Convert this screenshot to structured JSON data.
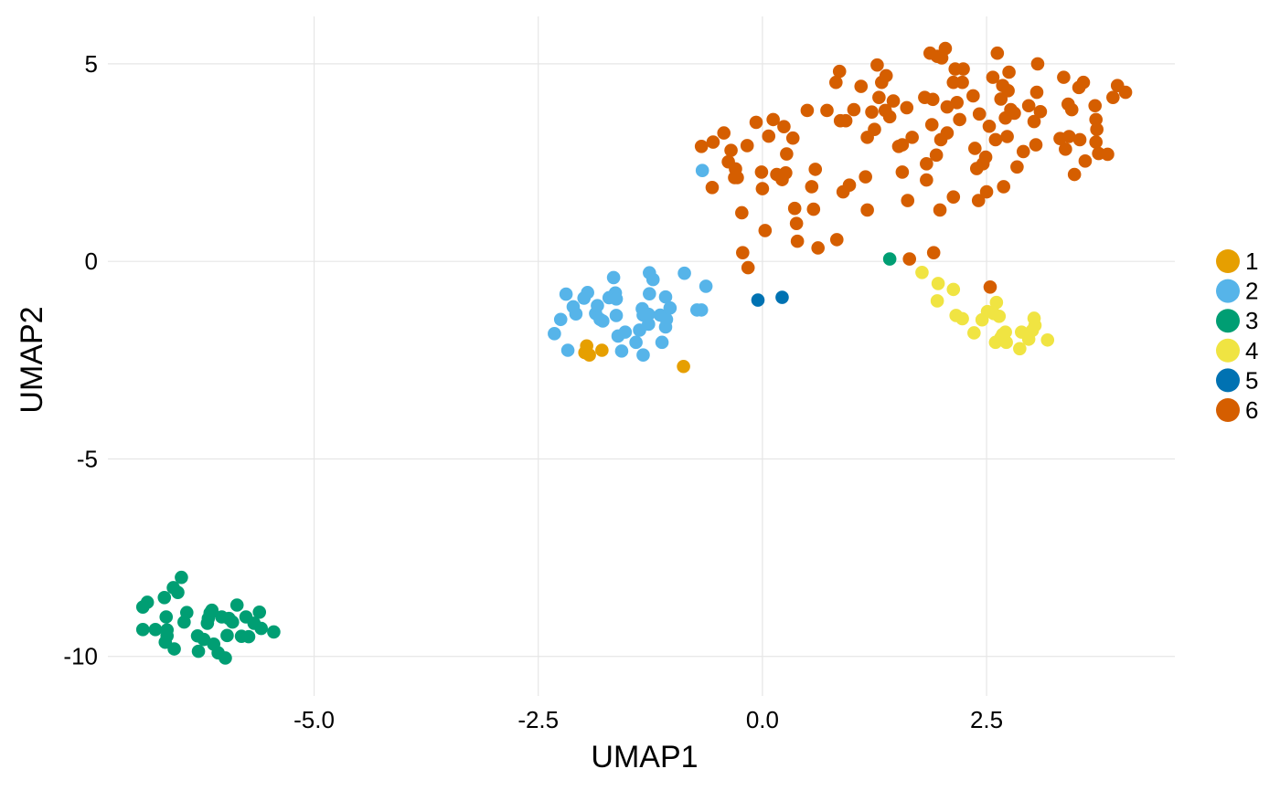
{
  "chart_data": {
    "type": "scatter",
    "xlabel": "UMAP1",
    "ylabel": "UMAP2",
    "xlim": [
      -7.3,
      4.6
    ],
    "ylim": [
      -11.0,
      6.2
    ],
    "xticks": [
      -5.0,
      -2.5,
      0.0,
      2.5
    ],
    "xtick_labels": [
      "-5.0",
      "-2.5",
      "0.0",
      "2.5"
    ],
    "yticks": [
      -10,
      -5,
      0,
      5
    ],
    "ytick_labels": [
      "-10",
      "-5",
      "0",
      "5"
    ],
    "grid": true,
    "legend_position": "right",
    "series": [
      {
        "name": "1",
        "color": "#E69F00",
        "points": [
          [
            -1.96,
            -2.14
          ],
          [
            -1.98,
            -2.31
          ],
          [
            -1.93,
            -2.37
          ],
          [
            -1.79,
            -2.25
          ],
          [
            -0.88,
            -2.66
          ]
        ]
      },
      {
        "name": "2",
        "color": "#56B4E9",
        "points": [
          [
            -0.67,
            2.3
          ],
          [
            -2.32,
            -1.83
          ],
          [
            -2.25,
            -1.47
          ],
          [
            -2.19,
            -0.83
          ],
          [
            -2.17,
            -2.25
          ],
          [
            -2.11,
            -1.15
          ],
          [
            -2.08,
            -1.33
          ],
          [
            -1.99,
            -0.93
          ],
          [
            -1.95,
            -0.79
          ],
          [
            -1.86,
            -1.32
          ],
          [
            -1.84,
            -1.12
          ],
          [
            -1.81,
            -1.47
          ],
          [
            -1.78,
            -1.51
          ],
          [
            -1.71,
            -0.92
          ],
          [
            -1.66,
            -0.41
          ],
          [
            -1.64,
            -0.8
          ],
          [
            -1.63,
            -0.95
          ],
          [
            -1.63,
            -1.37
          ],
          [
            -1.61,
            -1.89
          ],
          [
            -1.57,
            -2.27
          ],
          [
            -1.53,
            -1.79
          ],
          [
            -1.41,
            -2.05
          ],
          [
            -1.37,
            -1.74
          ],
          [
            -1.33,
            -2.37
          ],
          [
            -1.34,
            -1.2
          ],
          [
            -1.33,
            -1.36
          ],
          [
            -1.27,
            -1.59
          ],
          [
            -1.27,
            -1.34
          ],
          [
            -1.26,
            -0.82
          ],
          [
            -1.26,
            -0.29
          ],
          [
            -1.22,
            -0.46
          ],
          [
            -1.14,
            -1.36
          ],
          [
            -1.12,
            -2.05
          ],
          [
            -1.08,
            -0.9
          ],
          [
            -1.08,
            -1.66
          ],
          [
            -1.07,
            -1.47
          ],
          [
            -1.03,
            -1.18
          ],
          [
            -0.87,
            -0.3
          ],
          [
            -0.73,
            -1.23
          ],
          [
            -0.68,
            -1.23
          ],
          [
            -0.63,
            -0.63
          ]
        ]
      },
      {
        "name": "3",
        "color": "#009E73",
        "points": [
          [
            1.42,
            0.06
          ],
          [
            -6.48,
            -8.0
          ],
          [
            -6.52,
            -8.38
          ],
          [
            -6.57,
            -8.26
          ],
          [
            -6.67,
            -8.51
          ],
          [
            -6.86,
            -8.63
          ],
          [
            -6.91,
            -8.75
          ],
          [
            -6.91,
            -9.32
          ],
          [
            -6.77,
            -9.32
          ],
          [
            -6.65,
            -9.0
          ],
          [
            -6.64,
            -9.33
          ],
          [
            -6.64,
            -9.48
          ],
          [
            -6.66,
            -9.64
          ],
          [
            -6.56,
            -9.81
          ],
          [
            -6.45,
            -9.13
          ],
          [
            -6.42,
            -8.89
          ],
          [
            -6.3,
            -9.48
          ],
          [
            -6.29,
            -9.87
          ],
          [
            -6.23,
            -9.57
          ],
          [
            -6.19,
            -9.16
          ],
          [
            -6.18,
            -9.04
          ],
          [
            -6.16,
            -8.9
          ],
          [
            -6.14,
            -8.83
          ],
          [
            -6.12,
            -9.69
          ],
          [
            -6.07,
            -9.91
          ],
          [
            -6.03,
            -9.0
          ],
          [
            -5.99,
            -10.04
          ],
          [
            -5.97,
            -9.47
          ],
          [
            -5.95,
            -9.04
          ],
          [
            -5.91,
            -9.13
          ],
          [
            -5.86,
            -8.7
          ],
          [
            -5.81,
            -9.49
          ],
          [
            -5.76,
            -9.0
          ],
          [
            -5.73,
            -9.5
          ],
          [
            -5.67,
            -9.16
          ],
          [
            -5.61,
            -8.88
          ],
          [
            -5.59,
            -9.29
          ],
          [
            -5.45,
            -9.38
          ]
        ]
      },
      {
        "name": "4",
        "color": "#F0E442",
        "points": [
          [
            1.78,
            -0.28
          ],
          [
            1.96,
            -0.56
          ],
          [
            1.95,
            -1.0
          ],
          [
            2.13,
            -0.71
          ],
          [
            2.16,
            -1.37
          ],
          [
            2.23,
            -1.45
          ],
          [
            2.36,
            -1.81
          ],
          [
            2.45,
            -1.48
          ],
          [
            2.51,
            -1.27
          ],
          [
            2.58,
            -1.32
          ],
          [
            2.61,
            -1.04
          ],
          [
            2.6,
            -2.05
          ],
          [
            2.64,
            -1.39
          ],
          [
            2.66,
            -1.93
          ],
          [
            2.68,
            -1.85
          ],
          [
            2.72,
            -2.05
          ],
          [
            2.71,
            -1.79
          ],
          [
            2.87,
            -2.21
          ],
          [
            2.89,
            -1.79
          ],
          [
            2.97,
            -1.97
          ],
          [
            3.01,
            -1.75
          ],
          [
            3.03,
            -1.44
          ],
          [
            3.04,
            -1.62
          ],
          [
            3.18,
            -1.99
          ]
        ]
      },
      {
        "name": "5",
        "color": "#0072B2",
        "points": [
          [
            -0.05,
            -0.98
          ],
          [
            0.22,
            -0.91
          ]
        ]
      },
      {
        "name": "6",
        "color": "#D55E00",
        "points": [
          [
            1.64,
            0.06
          ],
          [
            1.91,
            0.22
          ],
          [
            2.54,
            -0.65
          ],
          [
            -0.68,
            2.91
          ],
          [
            -0.55,
            3.02
          ],
          [
            -0.43,
            3.25
          ],
          [
            -0.38,
            2.52
          ],
          [
            -0.35,
            2.81
          ],
          [
            -0.31,
            2.12
          ],
          [
            -0.3,
            2.34
          ],
          [
            -0.28,
            2.12
          ],
          [
            -0.56,
            1.87
          ],
          [
            -0.23,
            1.23
          ],
          [
            -0.17,
            2.93
          ],
          [
            -0.07,
            3.52
          ],
          [
            -0.01,
            2.26
          ],
          [
            0.0,
            1.84
          ],
          [
            0.03,
            0.78
          ],
          [
            0.07,
            3.17
          ],
          [
            0.12,
            3.59
          ],
          [
            0.16,
            2.2
          ],
          [
            0.22,
            2.07
          ],
          [
            0.24,
            3.41
          ],
          [
            0.27,
            2.72
          ],
          [
            0.26,
            2.24
          ],
          [
            0.34,
            3.12
          ],
          [
            0.36,
            1.34
          ],
          [
            0.38,
            0.96
          ],
          [
            0.39,
            0.51
          ],
          [
            -0.22,
            0.22
          ],
          [
            -0.16,
            -0.16
          ],
          [
            0.5,
            3.82
          ],
          [
            0.55,
            1.89
          ],
          [
            0.57,
            1.32
          ],
          [
            0.59,
            2.33
          ],
          [
            0.62,
            0.34
          ],
          [
            0.72,
            3.82
          ],
          [
            0.82,
            4.53
          ],
          [
            0.83,
            0.55
          ],
          [
            0.86,
            4.81
          ],
          [
            0.87,
            3.56
          ],
          [
            0.9,
            1.76
          ],
          [
            0.93,
            3.56
          ],
          [
            0.97,
            1.93
          ],
          [
            1.02,
            3.84
          ],
          [
            1.1,
            4.43
          ],
          [
            1.15,
            2.14
          ],
          [
            1.17,
            1.3
          ],
          [
            1.17,
            3.14
          ],
          [
            1.22,
            3.78
          ],
          [
            1.25,
            3.34
          ],
          [
            1.28,
            4.97
          ],
          [
            1.3,
            4.15
          ],
          [
            1.33,
            4.53
          ],
          [
            1.37,
            3.82
          ],
          [
            1.38,
            4.7
          ],
          [
            1.42,
            3.66
          ],
          [
            1.46,
            4.06
          ],
          [
            1.52,
            2.91
          ],
          [
            1.56,
            2.95
          ],
          [
            1.56,
            2.26
          ],
          [
            1.61,
            3.89
          ],
          [
            1.62,
            1.54
          ],
          [
            1.67,
            3.14
          ],
          [
            1.81,
            4.15
          ],
          [
            1.83,
            2.06
          ],
          [
            1.83,
            2.47
          ],
          [
            1.87,
            5.27
          ],
          [
            1.89,
            3.46
          ],
          [
            1.9,
            4.1
          ],
          [
            1.94,
            2.69
          ],
          [
            1.95,
            5.19
          ],
          [
            1.98,
            1.3
          ],
          [
            1.99,
            3.08
          ],
          [
            2.0,
            5.15
          ],
          [
            2.04,
            5.39
          ],
          [
            2.06,
            3.25
          ],
          [
            2.06,
            3.91
          ],
          [
            2.13,
            4.53
          ],
          [
            2.13,
            1.63
          ],
          [
            2.15,
            4.87
          ],
          [
            2.17,
            4.02
          ],
          [
            2.2,
            3.59
          ],
          [
            2.23,
            4.53
          ],
          [
            2.24,
            4.87
          ],
          [
            2.35,
            4.19
          ],
          [
            2.37,
            2.86
          ],
          [
            2.39,
            2.35
          ],
          [
            2.41,
            1.54
          ],
          [
            2.42,
            3.73
          ],
          [
            2.46,
            2.47
          ],
          [
            2.49,
            2.64
          ],
          [
            2.5,
            1.76
          ],
          [
            2.53,
            3.42
          ],
          [
            2.57,
            4.66
          ],
          [
            2.6,
            3.08
          ],
          [
            2.62,
            5.27
          ],
          [
            2.66,
            4.11
          ],
          [
            2.68,
            4.45
          ],
          [
            2.69,
            1.89
          ],
          [
            2.71,
            3.63
          ],
          [
            2.74,
            4.32
          ],
          [
            2.73,
            3.16
          ],
          [
            2.75,
            4.79
          ],
          [
            2.77,
            3.84
          ],
          [
            2.81,
            3.75
          ],
          [
            2.84,
            2.39
          ],
          [
            2.91,
            2.78
          ],
          [
            2.97,
            3.94
          ],
          [
            3.03,
            3.54
          ],
          [
            3.05,
            2.95
          ],
          [
            3.06,
            4.28
          ],
          [
            3.07,
            5.0
          ],
          [
            3.1,
            3.79
          ],
          [
            3.32,
            3.11
          ],
          [
            3.38,
            2.84
          ],
          [
            3.36,
            4.66
          ],
          [
            3.41,
            3.98
          ],
          [
            3.42,
            3.16
          ],
          [
            3.45,
            3.84
          ],
          [
            3.48,
            2.2
          ],
          [
            3.53,
            4.4
          ],
          [
            3.54,
            3.08
          ],
          [
            3.58,
            4.53
          ],
          [
            3.6,
            2.54
          ],
          [
            3.71,
            3.94
          ],
          [
            3.72,
            3.59
          ],
          [
            3.73,
            3.34
          ],
          [
            3.72,
            3.02
          ],
          [
            3.75,
            2.73
          ],
          [
            3.85,
            2.71
          ],
          [
            3.91,
            4.15
          ],
          [
            3.96,
            4.45
          ],
          [
            4.05,
            4.28
          ]
        ]
      }
    ]
  }
}
